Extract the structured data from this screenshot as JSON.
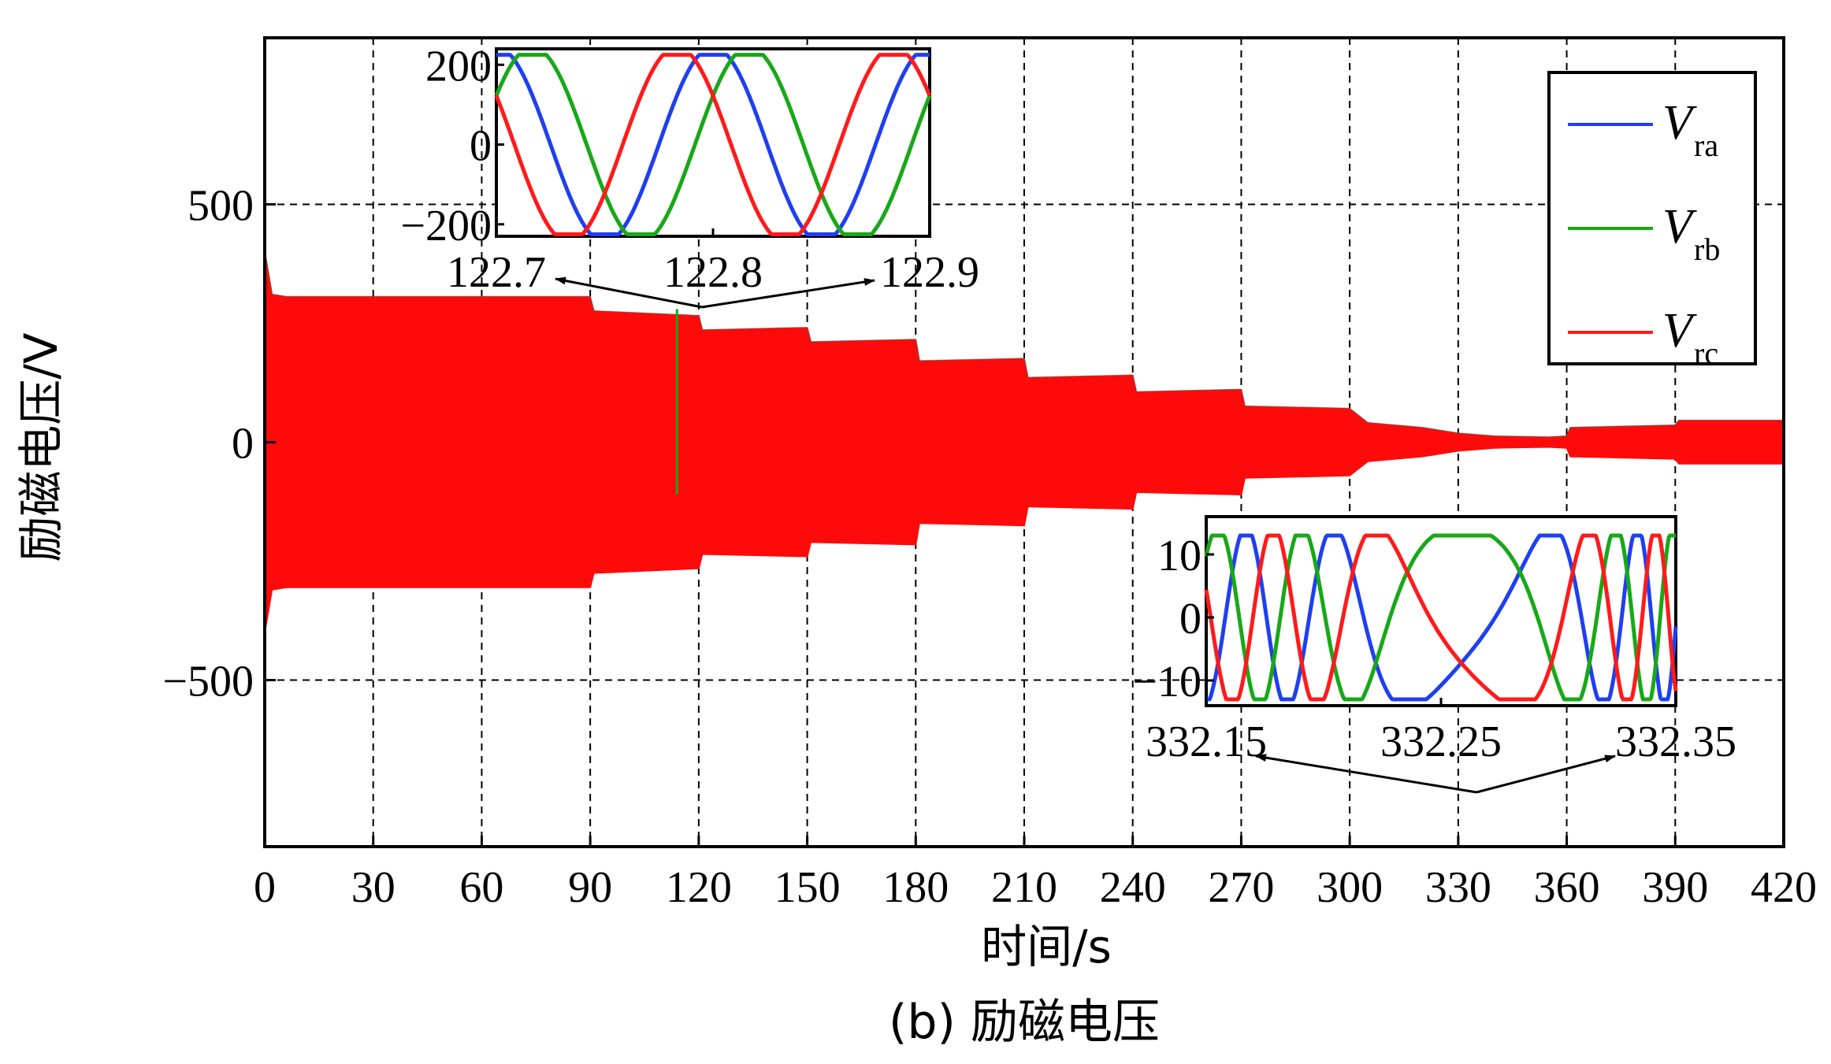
{
  "chart_data": {
    "type": "line",
    "xlabel": "时间/s",
    "ylabel": "励磁电压/V",
    "caption": "(b) 励磁电压",
    "xlim": [
      0,
      420
    ],
    "ylim": [
      -850,
      850
    ],
    "x_ticks": [
      "0",
      "30",
      "60",
      "90",
      "120",
      "150",
      "180",
      "210",
      "240",
      "270",
      "300",
      "330",
      "360",
      "390",
      "420"
    ],
    "y_ticks": [
      "500",
      "0",
      "−500"
    ],
    "y_tick_values": [
      500,
      0,
      -500
    ],
    "grid": true,
    "legend_position": "top-right",
    "series": [
      {
        "name": "V",
        "sub": "ra",
        "color": "#1f3ff0"
      },
      {
        "name": "V",
        "sub": "rb",
        "color": "#18a818"
      },
      {
        "name": "V",
        "sub": "rc",
        "color": "#ff1a1a"
      }
    ],
    "envelope": {
      "description_x": [
        0,
        2,
        6,
        90,
        91,
        120,
        121,
        150,
        151,
        180,
        181,
        210,
        211,
        240,
        241,
        270,
        271,
        300,
        305,
        320,
        330,
        340,
        355,
        360,
        361,
        390,
        391,
        420
      ],
      "amplitude": [
        400,
        310,
        305,
        305,
        275,
        265,
        235,
        240,
        210,
        215,
        170,
        175,
        135,
        140,
        105,
        110,
        75,
        70,
        40,
        30,
        18,
        12,
        10,
        12,
        30,
        35,
        45,
        45
      ]
    },
    "zoom_events": [
      {
        "t": 114,
        "kind": "spike",
        "range": [
          -110,
          280
        ]
      }
    ],
    "insets": [
      {
        "x_ticks": [
          "122.7",
          "122.8",
          "122.9"
        ],
        "xlim": [
          122.7,
          122.9
        ],
        "y_ticks": [
          "200",
          "0",
          "−200"
        ],
        "ylim": [
          -230,
          240
        ],
        "amplitude": 225,
        "period": 0.1,
        "arrow_source_t": 120
      },
      {
        "x_ticks": [
          "332.15",
          "332.25",
          "332.35"
        ],
        "xlim": [
          332.15,
          332.35
        ],
        "y_ticks": [
          "10",
          "0",
          "−10"
        ],
        "ylim": [
          -14,
          16
        ],
        "amplitude": 13,
        "arrow_source_t": 332
      }
    ]
  }
}
